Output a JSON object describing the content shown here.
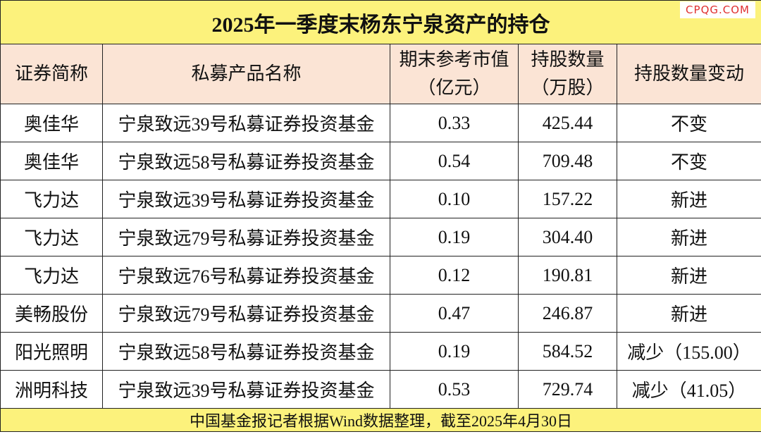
{
  "title": "2025年一季度末杨东宁泉资产的持仓",
  "watermark": "CPQG.COM",
  "table": {
    "columns": [
      [
        "证券简称"
      ],
      [
        "私募产品名称"
      ],
      [
        "期末参考市值",
        "（亿元）"
      ],
      [
        "持股数量",
        "（万股）"
      ],
      [
        "持股数量变动"
      ]
    ],
    "rows": [
      [
        "奥佳华",
        "宁泉致远39号私募证券投资基金",
        "0.33",
        "425.44",
        "不变"
      ],
      [
        "奥佳华",
        "宁泉致远58号私募证券投资基金",
        "0.54",
        "709.48",
        "不变"
      ],
      [
        "飞力达",
        "宁泉致远39号私募证券投资基金",
        "0.10",
        "157.22",
        "新进"
      ],
      [
        "飞力达",
        "宁泉致远79号私募证券投资基金",
        "0.19",
        "304.40",
        "新进"
      ],
      [
        "飞力达",
        "宁泉致远76号私募证券投资基金",
        "0.12",
        "190.81",
        "新进"
      ],
      [
        "美畅股份",
        "宁泉致远79号私募证券投资基金",
        "0.47",
        "246.87",
        "新进"
      ],
      [
        "阳光照明",
        "宁泉致远58号私募证券投资基金",
        "0.19",
        "584.52",
        "减少（155.00）"
      ],
      [
        "洲明科技",
        "宁泉致远39号私募证券投资基金",
        "0.53",
        "729.74",
        "减少（41.05）"
      ]
    ]
  },
  "footer": "中国基金报记者根据Wind数据整理，截至2025年4月30日"
}
